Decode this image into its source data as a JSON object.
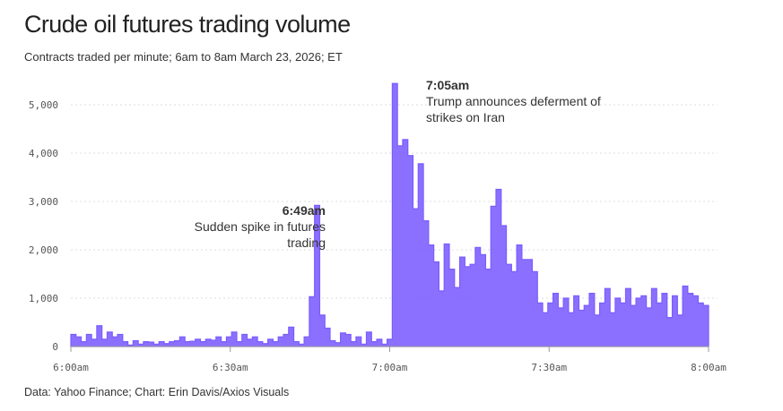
{
  "title": "Crude oil futures trading volume",
  "subtitle": "Contracts traded per minute; 6am to 8am March 23, 2026; ET",
  "source": "Data: Yahoo Finance; Chart: Erin Davis/Axios Visuals",
  "colors": {
    "bar": "#7b5cff",
    "grid": "#dcdcdc",
    "baseline": "#999999"
  },
  "chart_data": {
    "type": "area",
    "title": "Crude oil futures trading volume",
    "xlabel": "",
    "ylabel": "Contracts traded per minute",
    "x_start_minute": 0,
    "x_end_minute": 120,
    "ylim": [
      0,
      5500
    ],
    "yticks": [
      0,
      1000,
      2000,
      3000,
      4000,
      5000
    ],
    "ytick_labels": [
      "0",
      "1,000",
      "2,000",
      "3,000",
      "4,000",
      "5,000"
    ],
    "xticks": [
      0,
      30,
      60,
      90,
      120
    ],
    "xtick_labels": [
      "6:00am",
      "6:30am",
      "7:00am",
      "7:30am",
      "8:00am"
    ],
    "grid": true,
    "values": [
      250,
      200,
      100,
      250,
      150,
      430,
      150,
      300,
      200,
      250,
      100,
      30,
      120,
      50,
      100,
      90,
      50,
      100,
      60,
      100,
      120,
      200,
      100,
      110,
      150,
      100,
      150,
      130,
      200,
      100,
      200,
      300,
      100,
      250,
      150,
      200,
      100,
      60,
      150,
      100,
      200,
      250,
      400,
      100,
      50,
      200,
      1030,
      2920,
      650,
      380,
      120,
      80,
      280,
      250,
      100,
      200,
      50,
      300,
      100,
      150,
      50,
      150,
      5440,
      4150,
      4280,
      3950,
      2850,
      3780,
      2600,
      2100,
      1750,
      1150,
      2120,
      1600,
      1220,
      1850,
      1650,
      1700,
      2050,
      1900,
      1600,
      2900,
      3250,
      2500,
      1700,
      1550,
      2100,
      1800,
      1800,
      1550,
      900,
      700,
      900,
      1100,
      800,
      1000,
      700,
      1050,
      750,
      850,
      1100,
      650,
      900,
      1200,
      700,
      1000,
      900,
      1200,
      850,
      1000,
      1050,
      800,
      1200,
      900,
      1100,
      600,
      1050,
      650,
      1250,
      1100,
      1050,
      900,
      850
    ],
    "annotations": [
      {
        "time": "6:49am",
        "text_lines": [
          "Sudden spike in futures",
          "trading"
        ],
        "x_minute": 49,
        "align": "right"
      },
      {
        "time": "7:05am",
        "text_lines": [
          "Trump announces deferment of",
          "strikes on Iran"
        ],
        "x_minute": 65,
        "align": "left"
      }
    ]
  }
}
